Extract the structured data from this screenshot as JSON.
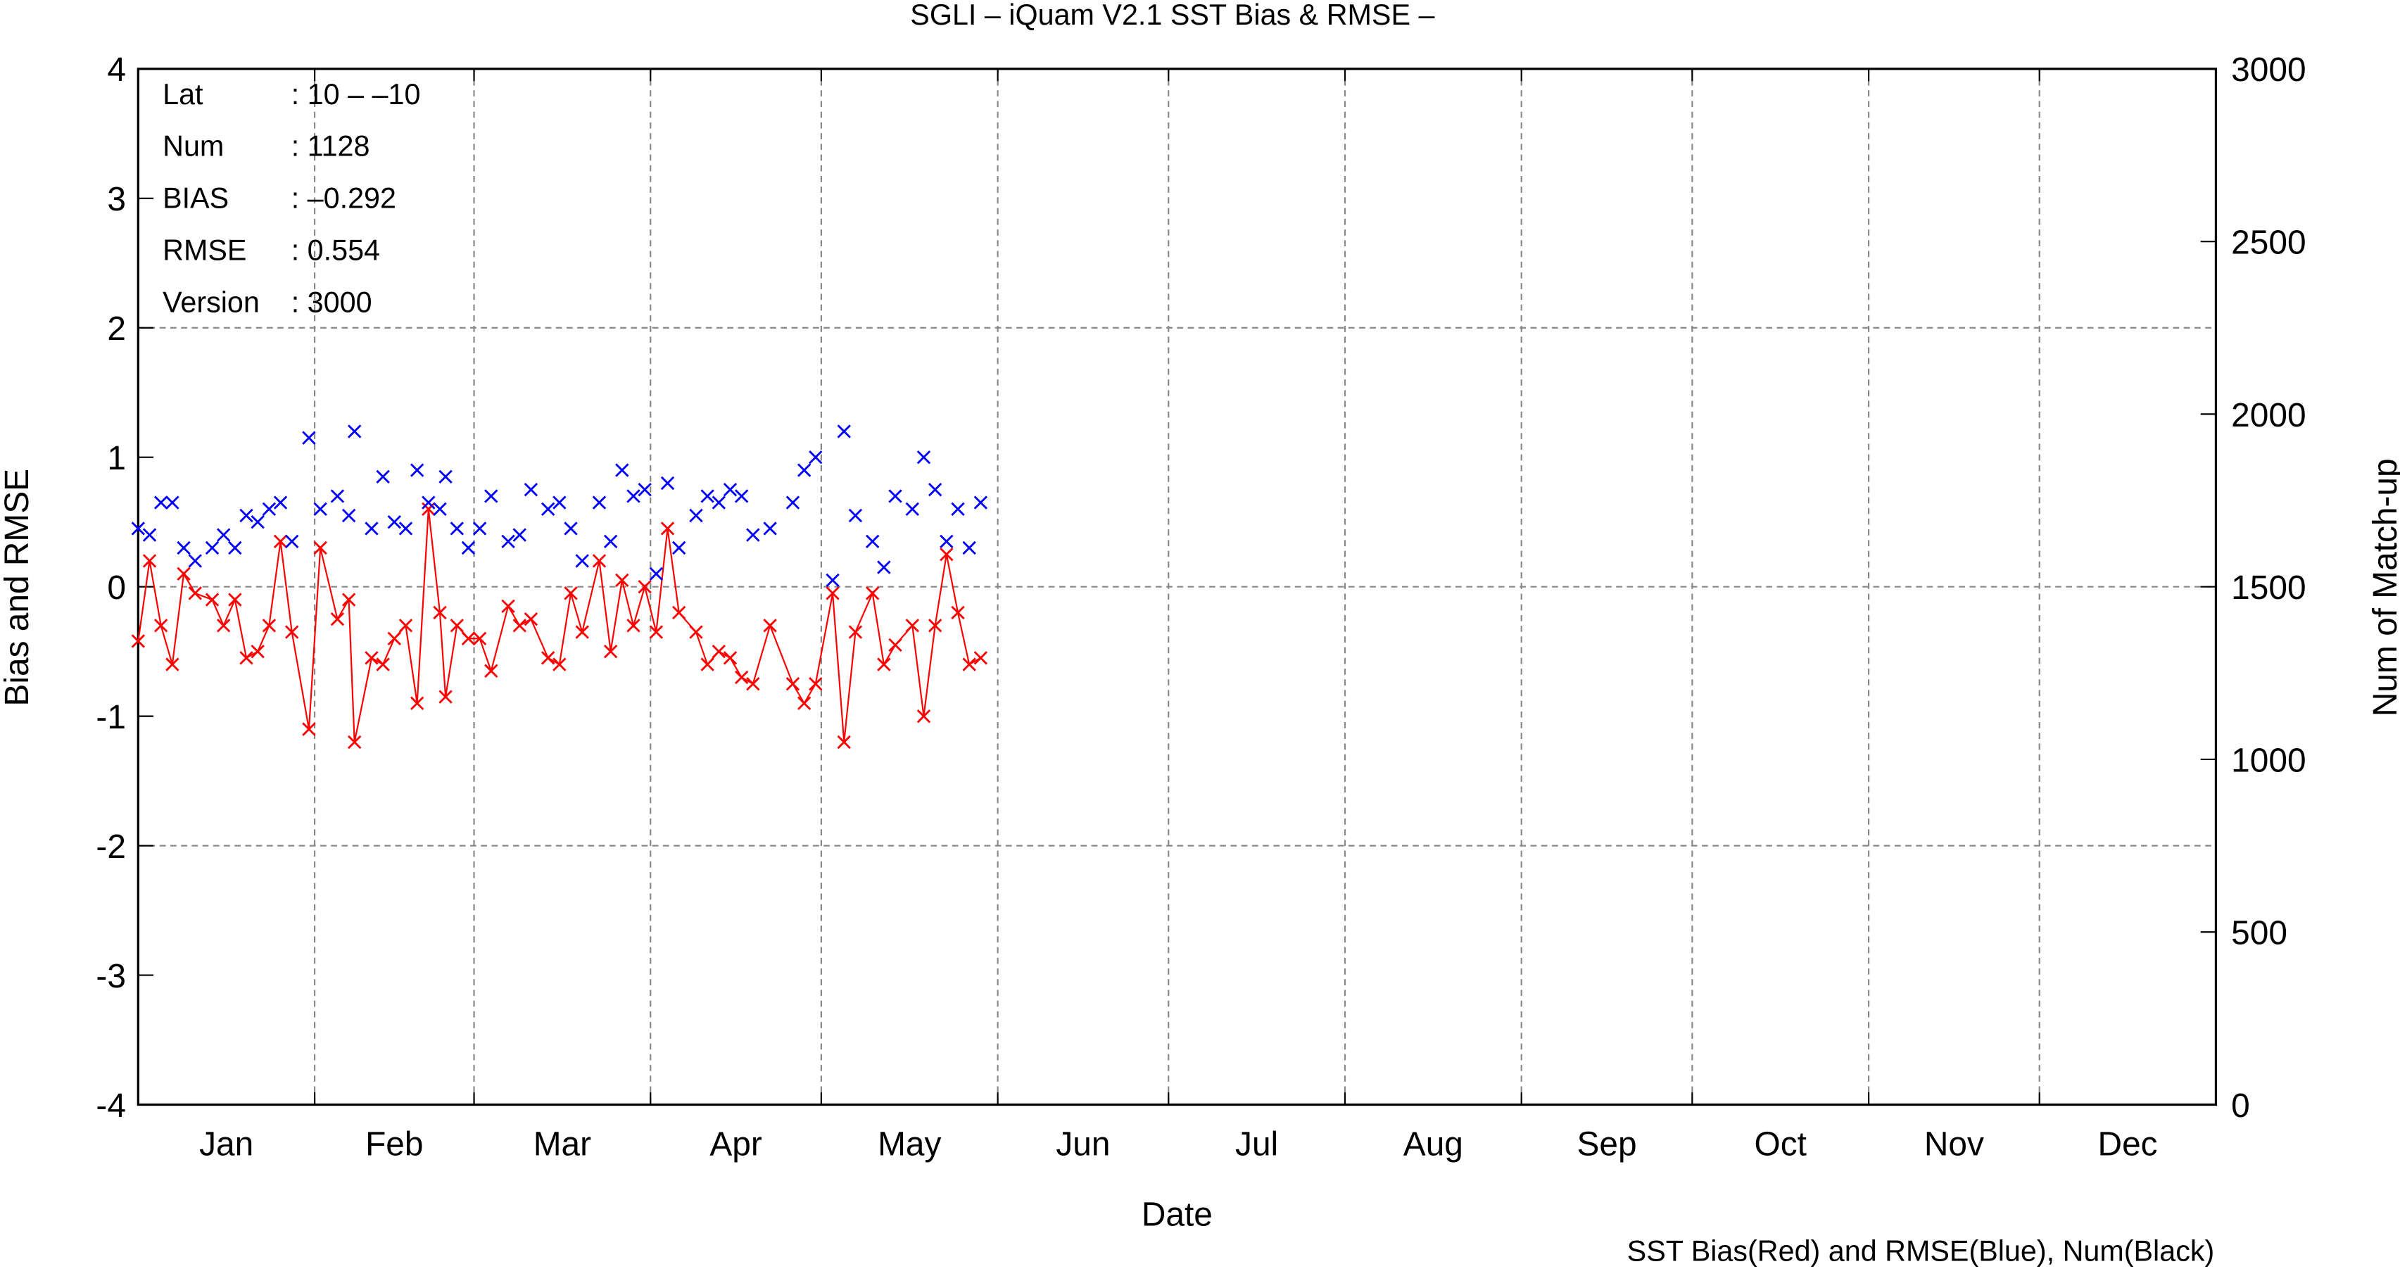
{
  "chart_data": {
    "type": "line",
    "title": "SGLI – iQuam V2.1 SST Bias & RMSE  –",
    "x_label": "Date",
    "y_label": "Bias and RMSE",
    "y2_label": "Num of Match-up",
    "caption": "SST Bias(Red) and RMSE(Blue), Num(Black)",
    "stats": [
      {
        "label": "Lat",
        "value": ": 10 – –10"
      },
      {
        "label": "Num",
        "value": ": 1128"
      },
      {
        "label": "BIAS",
        "value": ": –0.292"
      },
      {
        "label": "RMSE",
        "value": ": 0.554"
      },
      {
        "label": "Version",
        "value": ": 3000"
      }
    ],
    "xlim": [
      0,
      365
    ],
    "xticks": [
      {
        "value": 15.5,
        "label": "Jan"
      },
      {
        "value": 45,
        "label": "Feb"
      },
      {
        "value": 74.5,
        "label": "Mar"
      },
      {
        "value": 105,
        "label": "Apr"
      },
      {
        "value": 135.5,
        "label": "May"
      },
      {
        "value": 166,
        "label": "Jun"
      },
      {
        "value": 196.5,
        "label": "Jul"
      },
      {
        "value": 227.5,
        "label": "Aug"
      },
      {
        "value": 258,
        "label": "Sep"
      },
      {
        "value": 288.5,
        "label": "Oct"
      },
      {
        "value": 319,
        "label": "Nov"
      },
      {
        "value": 349.5,
        "label": "Dec"
      }
    ],
    "xgrid": [
      31,
      59,
      90,
      120,
      151,
      181,
      212,
      243,
      273,
      304,
      334
    ],
    "ylim": [
      -4,
      4
    ],
    "yticks": [
      -4,
      -3,
      -2,
      -1,
      0,
      1,
      2,
      3,
      4
    ],
    "ygrid": [
      -2,
      0,
      2
    ],
    "y2lim": [
      0,
      3000
    ],
    "y2ticks": [
      0,
      500,
      1000,
      1500,
      2000,
      2500,
      3000
    ],
    "x": [
      0,
      2,
      4,
      6,
      8,
      10,
      13,
      15,
      17,
      19,
      21,
      23,
      25,
      27,
      30,
      32,
      35,
      37,
      38,
      41,
      43,
      45,
      47,
      49,
      51,
      53,
      54,
      56,
      58,
      60,
      62,
      65,
      67,
      69,
      72,
      74,
      76,
      78,
      81,
      83,
      85,
      87,
      89,
      91,
      93,
      95,
      98,
      100,
      102,
      104,
      106,
      108,
      111,
      115,
      117,
      119,
      122,
      124,
      126,
      129,
      131,
      133,
      136,
      138,
      140,
      142,
      144,
      146,
      148
    ],
    "series": [
      {
        "color": "#ff0000",
        "line": true,
        "marker": "x",
        "values": [
          -0.42,
          0.2,
          -0.3,
          -0.6,
          0.1,
          -0.05,
          -0.1,
          -0.3,
          -0.1,
          -0.55,
          -0.5,
          -0.3,
          0.35,
          -0.35,
          -1.1,
          0.3,
          -0.25,
          -0.1,
          -1.2,
          -0.55,
          -0.6,
          -0.4,
          -0.3,
          -0.9,
          0.6,
          -0.2,
          -0.85,
          -0.3,
          -0.4,
          -0.4,
          -0.65,
          -0.15,
          -0.3,
          -0.25,
          -0.55,
          -0.6,
          -0.05,
          -0.35,
          0.2,
          -0.5,
          0.05,
          -0.3,
          0.0,
          -0.35,
          0.45,
          -0.2,
          -0.35,
          -0.6,
          -0.5,
          -0.55,
          -0.7,
          -0.75,
          -0.3,
          -0.75,
          -0.9,
          -0.75,
          -0.05,
          -1.2,
          -0.35,
          -0.05,
          -0.6,
          -0.45,
          -0.3,
          -1.0,
          -0.3,
          0.25,
          -0.2,
          -0.6,
          -0.55
        ]
      },
      {
        "color": "#0000ff",
        "line": false,
        "marker": "x",
        "values": [
          0.45,
          0.4,
          0.65,
          0.65,
          0.3,
          0.2,
          0.3,
          0.4,
          0.3,
          0.55,
          0.5,
          0.6,
          0.65,
          0.35,
          1.15,
          0.6,
          0.7,
          0.55,
          1.2,
          0.45,
          0.85,
          0.5,
          0.45,
          0.9,
          0.65,
          0.6,
          0.85,
          0.45,
          0.3,
          0.45,
          0.7,
          0.35,
          0.4,
          0.75,
          0.6,
          0.65,
          0.45,
          0.2,
          0.65,
          0.35,
          0.9,
          0.7,
          0.75,
          0.1,
          0.8,
          0.3,
          0.55,
          0.7,
          0.65,
          0.75,
          0.7,
          0.4,
          0.45,
          0.65,
          0.9,
          1.0,
          0.05,
          1.2,
          0.55,
          0.35,
          0.15,
          0.7,
          0.6,
          1.0,
          0.75,
          0.35,
          0.6,
          0.3,
          0.65
        ]
      }
    ]
  }
}
